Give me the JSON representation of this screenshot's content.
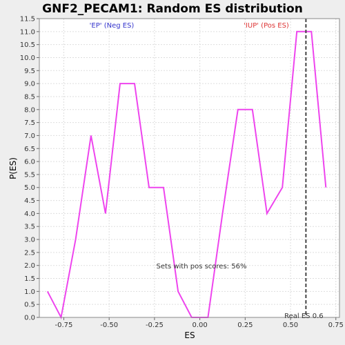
{
  "chart_data": {
    "type": "line",
    "title": "GNF2_PECAM1: Random ES distribution",
    "xlabel": "ES",
    "ylabel": "P(ES)",
    "xlim": [
      -0.885,
      0.77
    ],
    "ylim": [
      0.0,
      11.5
    ],
    "xticks": [
      -0.75,
      -0.5,
      -0.25,
      0.0,
      0.25,
      0.5,
      0.75
    ],
    "xtick_labels": [
      "-0.75",
      "-0.50",
      "-0.25",
      "0.00",
      "0.25",
      "0.50",
      "0.75"
    ],
    "yticks": [
      0.0,
      0.5,
      1.0,
      1.5,
      2.0,
      2.5,
      3.0,
      3.5,
      4.0,
      4.5,
      5.0,
      5.5,
      6.0,
      6.5,
      7.0,
      7.5,
      8.0,
      8.5,
      9.0,
      9.5,
      10.0,
      10.5,
      11.0,
      11.5
    ],
    "ytick_labels": [
      "0.0",
      "0.5",
      "1.0",
      "1.5",
      "2.0",
      "2.5",
      "3.0",
      "3.5",
      "4.0",
      "4.5",
      "5.0",
      "5.5",
      "6.0",
      "6.5",
      "7.0",
      "7.5",
      "8.0",
      "8.5",
      "9.0",
      "9.5",
      "10.0",
      "10.5",
      "11.0",
      "11.5"
    ],
    "grid": true,
    "series": [
      {
        "color": "#ee44ee",
        "x": [
          -0.84,
          -0.765,
          -0.685,
          -0.6,
          -0.52,
          -0.44,
          -0.36,
          -0.28,
          -0.2,
          -0.12,
          -0.045,
          0.045,
          0.125,
          0.21,
          0.29,
          0.37,
          0.455,
          0.535,
          0.615,
          0.695
        ],
        "y": [
          1.0,
          0.0,
          3.0,
          7.0,
          4.0,
          9.0,
          9.0,
          5.0,
          5.0,
          1.0,
          0.0,
          0.0,
          4.0,
          8.0,
          8.0,
          4.0,
          5.0,
          11.0,
          11.0,
          5.0
        ]
      }
    ],
    "annotations": {
      "neg_label": "'EP' (Neg ES)",
      "neg_color": "#3333cc",
      "pos_label": "'IUP' (Pos ES)",
      "pos_color": "#dd3333",
      "pos_scores_text": "Sets with pos scores: 56%",
      "real_es_label": "Real ES 0.6",
      "real_es_x": 0.585
    }
  }
}
